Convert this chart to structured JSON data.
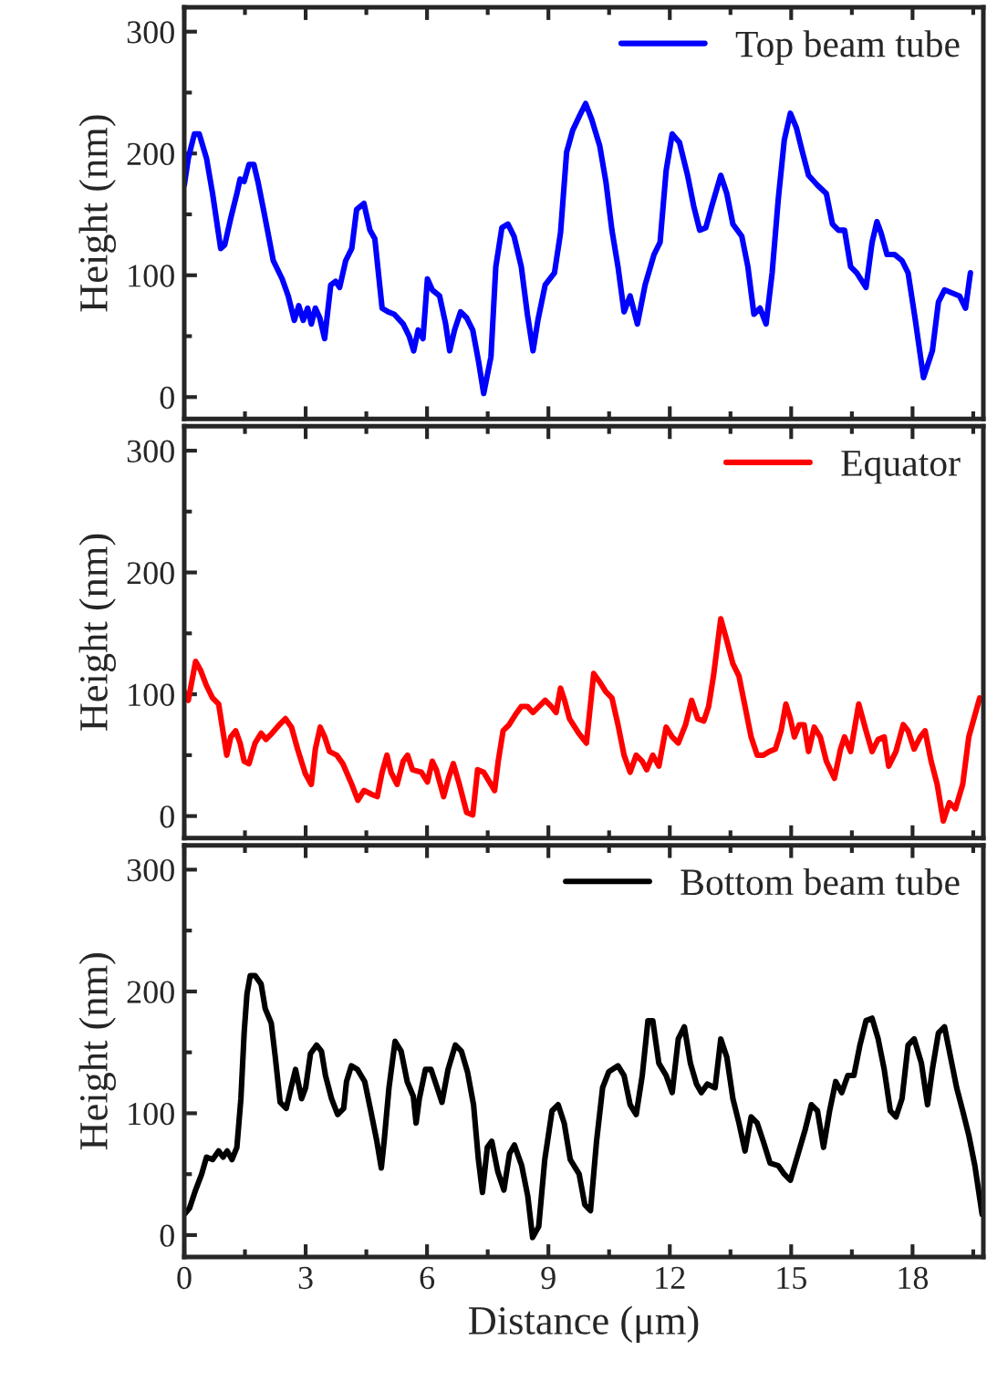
{
  "chart_data": [
    {
      "type": "line",
      "ylabel": "Height (nm)",
      "xlim": [
        0,
        19.75
      ],
      "ylim": [
        -18,
        320
      ],
      "xticks": [
        0,
        3,
        6,
        9,
        12,
        15,
        18
      ],
      "yticks": [
        0,
        100,
        200,
        300
      ],
      "tick_labels": "y",
      "legend": "top right",
      "grid": false,
      "series": [
        {
          "name": "Top beam tube",
          "color": "#0000ff",
          "x": [
            0.0,
            0.1,
            0.25,
            0.37,
            0.55,
            0.7,
            0.9,
            1.0,
            1.15,
            1.3,
            1.38,
            1.48,
            1.6,
            1.72,
            1.82,
            1.97,
            2.2,
            2.42,
            2.57,
            2.72,
            2.83,
            2.94,
            3.05,
            3.14,
            3.24,
            3.35,
            3.47,
            3.62,
            3.74,
            3.84,
            3.99,
            4.14,
            4.26,
            4.44,
            4.59,
            4.71,
            4.89,
            5.04,
            5.19,
            5.41,
            5.56,
            5.67,
            5.78,
            5.9,
            6.01,
            6.13,
            6.31,
            6.46,
            6.56,
            6.68,
            6.83,
            6.98,
            7.13,
            7.28,
            7.4,
            7.58,
            7.7,
            7.85,
            8.0,
            8.15,
            8.33,
            8.48,
            8.62,
            8.74,
            8.92,
            9.15,
            9.3,
            9.45,
            9.6,
            9.77,
            9.92,
            10.07,
            10.27,
            10.42,
            10.57,
            10.72,
            10.87,
            11.02,
            11.2,
            11.39,
            11.61,
            11.76,
            11.91,
            12.06,
            12.24,
            12.44,
            12.59,
            12.74,
            12.89,
            13.04,
            13.26,
            13.41,
            13.56,
            13.78,
            13.93,
            14.08,
            14.23,
            14.38,
            14.53,
            14.68,
            14.83,
            14.98,
            15.13,
            15.28,
            15.43,
            15.65,
            15.87,
            16.02,
            16.17,
            16.32,
            16.47,
            16.62,
            16.85,
            17.0,
            17.12,
            17.22,
            17.37,
            17.56,
            17.74,
            17.89,
            18.07,
            18.27,
            18.49,
            18.64,
            18.79,
            19.01,
            19.16,
            19.31,
            19.43
          ],
          "values": [
            174,
            196,
            216,
            216,
            196,
            167,
            122,
            125,
            147,
            167,
            179,
            177,
            191,
            191,
            177,
            152,
            112,
            97,
            83,
            63,
            75,
            63,
            73,
            60,
            73,
            65,
            48,
            92,
            95,
            90,
            112,
            122,
            154,
            159,
            137,
            130,
            73,
            70,
            68,
            60,
            50,
            38,
            55,
            48,
            97,
            88,
            83,
            60,
            38,
            55,
            70,
            65,
            55,
            28,
            3,
            33,
            107,
            139,
            142,
            132,
            107,
            68,
            38,
            63,
            92,
            102,
            135,
            201,
            219,
            231,
            241,
            228,
            206,
            177,
            137,
            107,
            70,
            83,
            60,
            92,
            117,
            127,
            186,
            216,
            209,
            182,
            157,
            137,
            139,
            157,
            182,
            167,
            142,
            132,
            107,
            68,
            73,
            60,
            102,
            162,
            211,
            233,
            221,
            201,
            182,
            174,
            167,
            142,
            137,
            137,
            107,
            102,
            90,
            127,
            144,
            135,
            117,
            117,
            112,
            102,
            63,
            16,
            38,
            78,
            88,
            85,
            83,
            73,
            102
          ]
        }
      ]
    },
    {
      "type": "line",
      "ylabel": "Height (nm)",
      "xlim": [
        0,
        19.75
      ],
      "ylim": [
        -18,
        320
      ],
      "xticks": [
        0,
        3,
        6,
        9,
        12,
        15,
        18
      ],
      "yticks": [
        0,
        100,
        200,
        300
      ],
      "tick_labels": "y",
      "legend": "top right",
      "grid": false,
      "series": [
        {
          "name": "Equator",
          "color": "#ff0000",
          "x": [
            0.0,
            0.1,
            0.28,
            0.4,
            0.55,
            0.7,
            0.85,
            0.93,
            1.05,
            1.15,
            1.27,
            1.38,
            1.48,
            1.6,
            1.75,
            1.9,
            2.02,
            2.17,
            2.35,
            2.5,
            2.65,
            2.8,
            2.99,
            3.14,
            3.24,
            3.36,
            3.47,
            3.59,
            3.77,
            3.92,
            4.14,
            4.29,
            4.44,
            4.62,
            4.77,
            4.89,
            5.01,
            5.11,
            5.26,
            5.41,
            5.52,
            5.64,
            5.86,
            6.01,
            6.13,
            6.23,
            6.41,
            6.53,
            6.65,
            6.8,
            6.98,
            7.13,
            7.25,
            7.4,
            7.58,
            7.67,
            7.76,
            7.88,
            8.03,
            8.18,
            8.33,
            8.48,
            8.62,
            8.77,
            8.92,
            9.07,
            9.19,
            9.3,
            9.4,
            9.52,
            9.75,
            9.94,
            10.12,
            10.27,
            10.42,
            10.57,
            10.72,
            10.87,
            11.02,
            11.17,
            11.32,
            11.43,
            11.58,
            11.73,
            11.91,
            12.06,
            12.21,
            12.39,
            12.54,
            12.69,
            12.84,
            12.96,
            13.08,
            13.26,
            13.41,
            13.56,
            13.71,
            13.86,
            14.01,
            14.16,
            14.31,
            14.46,
            14.61,
            14.75,
            14.87,
            14.98,
            15.08,
            15.2,
            15.32,
            15.43,
            15.57,
            15.72,
            15.87,
            16.07,
            16.22,
            16.32,
            16.47,
            16.67,
            16.85,
            17.0,
            17.15,
            17.3,
            17.41,
            17.59,
            17.77,
            17.89,
            18.04,
            18.19,
            18.31,
            18.46,
            18.61,
            18.76,
            18.91,
            19.06,
            19.24,
            19.39,
            19.66
          ],
          "values": [
            102,
            95,
            127,
            120,
            107,
            97,
            92,
            75,
            50,
            65,
            70,
            60,
            45,
            43,
            60,
            68,
            63,
            68,
            75,
            80,
            73,
            55,
            35,
            26,
            55,
            73,
            65,
            53,
            50,
            43,
            26,
            13,
            21,
            18,
            16,
            36,
            50,
            36,
            26,
            45,
            50,
            38,
            36,
            28,
            45,
            38,
            16,
            31,
            43,
            26,
            3,
            1,
            38,
            36,
            26,
            21,
            45,
            70,
            75,
            83,
            90,
            90,
            85,
            90,
            95,
            90,
            85,
            105,
            95,
            80,
            68,
            60,
            117,
            110,
            102,
            97,
            75,
            50,
            36,
            50,
            45,
            38,
            50,
            41,
            73,
            65,
            60,
            75,
            95,
            80,
            78,
            90,
            115,
            162,
            144,
            125,
            115,
            90,
            65,
            50,
            50,
            53,
            55,
            70,
            92,
            80,
            65,
            75,
            75,
            53,
            73,
            65,
            45,
            31,
            55,
            65,
            53,
            92,
            70,
            53,
            63,
            65,
            41,
            53,
            75,
            70,
            55,
            65,
            70,
            45,
            26,
            -4,
            11,
            6,
            26,
            65,
            97
          ]
        }
      ]
    },
    {
      "type": "line",
      "xlabel": "Distance (μm)",
      "ylabel": "Height (nm)",
      "xlim": [
        0,
        19.75
      ],
      "ylim": [
        -18,
        320
      ],
      "xticks": [
        0,
        3,
        6,
        9,
        12,
        15,
        18
      ],
      "yticks": [
        0,
        100,
        200,
        300
      ],
      "legend": "top right",
      "grid": false,
      "series": [
        {
          "name": "Bottom beam tube",
          "color": "#000000",
          "x": [
            0.0,
            0.13,
            0.28,
            0.43,
            0.55,
            0.7,
            0.85,
            0.96,
            1.06,
            1.18,
            1.3,
            1.4,
            1.48,
            1.55,
            1.63,
            1.75,
            1.9,
            2.0,
            2.15,
            2.25,
            2.37,
            2.52,
            2.64,
            2.75,
            2.9,
            3.0,
            3.12,
            3.27,
            3.39,
            3.49,
            3.64,
            3.79,
            3.94,
            4.01,
            4.13,
            4.28,
            4.46,
            4.61,
            4.76,
            4.87,
            4.94,
            5.06,
            5.21,
            5.36,
            5.51,
            5.66,
            5.73,
            5.81,
            5.96,
            6.1,
            6.25,
            6.37,
            6.52,
            6.7,
            6.85,
            7.0,
            7.15,
            7.27,
            7.37,
            7.49,
            7.6,
            7.75,
            7.9,
            8.04,
            8.16,
            8.34,
            8.49,
            8.61,
            8.76,
            8.91,
            9.09,
            9.24,
            9.39,
            9.54,
            9.76,
            9.9,
            10.04,
            10.19,
            10.34,
            10.49,
            10.72,
            10.87,
            11.02,
            11.17,
            11.32,
            11.46,
            11.58,
            11.73,
            11.91,
            12.06,
            12.21,
            12.36,
            12.51,
            12.66,
            12.78,
            12.93,
            13.12,
            13.26,
            13.41,
            13.56,
            13.71,
            13.86,
            14.01,
            14.16,
            14.31,
            14.48,
            14.68,
            14.83,
            14.98,
            15.13,
            15.35,
            15.5,
            15.65,
            15.8,
            15.95,
            16.1,
            16.25,
            16.4,
            16.55,
            16.7,
            16.85,
            17.0,
            17.15,
            17.3,
            17.45,
            17.59,
            17.74,
            17.89,
            18.04,
            18.22,
            18.37,
            18.49,
            18.64,
            18.79,
            18.94,
            19.09,
            19.24,
            19.39,
            19.54,
            19.72
          ],
          "values": [
            17,
            22,
            37,
            50,
            64,
            62,
            69,
            64,
            69,
            62,
            72,
            112,
            166,
            198,
            213,
            213,
            206,
            186,
            174,
            146,
            109,
            104,
            121,
            136,
            112,
            121,
            149,
            156,
            151,
            131,
            112,
            99,
            104,
            126,
            139,
            136,
            126,
            102,
            77,
            55,
            77,
            121,
            159,
            151,
            126,
            114,
            92,
            112,
            136,
            136,
            121,
            109,
            136,
            156,
            151,
            134,
            107,
            62,
            35,
            72,
            77,
            52,
            37,
            67,
            74,
            57,
            32,
            -2,
            7,
            62,
            102,
            107,
            92,
            62,
            50,
            25,
            20,
            77,
            121,
            134,
            139,
            131,
            107,
            99,
            131,
            176,
            176,
            141,
            131,
            117,
            161,
            171,
            141,
            124,
            117,
            124,
            121,
            161,
            146,
            112,
            92,
            69,
            97,
            92,
            77,
            59,
            57,
            50,
            45,
            62,
            87,
            107,
            102,
            72,
            102,
            126,
            117,
            131,
            131,
            156,
            176,
            178,
            161,
            136,
            102,
            97,
            112,
            156,
            161,
            141,
            107,
            136,
            166,
            171,
            146,
            121,
            102,
            82,
            57,
            17
          ]
        }
      ]
    }
  ]
}
